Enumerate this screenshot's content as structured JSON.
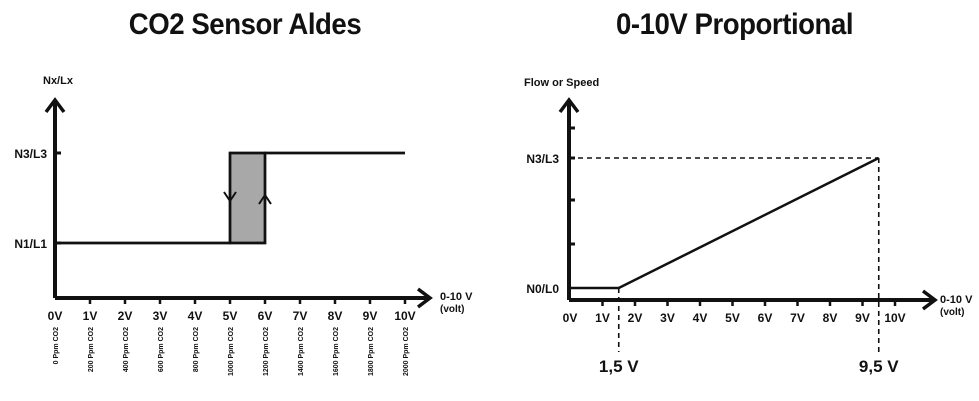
{
  "chart_data": [
    {
      "type": "line",
      "title": "CO2 Sensor Aldes",
      "ylabel": "Nx/Lx",
      "xlabel": "0-10 V (volt)",
      "xlabel_main": "0-10 V",
      "xlabel_unit": "(volt)",
      "x_ticks": [
        "0V",
        "1V",
        "2V",
        "3V",
        "4V",
        "5V",
        "6V",
        "7V",
        "8V",
        "9V",
        "10V"
      ],
      "ppm_ticks": [
        "0 Ppm CO2",
        "200 Ppm CO2",
        "400 Ppm CO2",
        "600 Ppm CO2",
        "800 Ppm CO2",
        "1000 Ppm CO2",
        "1200 Ppm CO2",
        "1400 Ppm CO2",
        "1600 Ppm CO2",
        "1800 Ppm CO2",
        "2000 Ppm CO2"
      ],
      "y_levels": [
        "N1/L1",
        "N3/L3"
      ],
      "xlim": [
        0,
        10
      ],
      "series": [
        {
          "x": [
            0,
            6,
            6,
            10
          ],
          "y": [
            "N1/L1",
            "N1/L1",
            "N3/L3",
            "N3/L3"
          ]
        },
        {
          "x": [
            0,
            5,
            5,
            10
          ],
          "y": [
            "N1/L1",
            "N1/L1",
            "N3/L3",
            "N3/L3"
          ]
        }
      ],
      "hysteresis_band": [
        5,
        6
      ]
    },
    {
      "type": "line",
      "title": "0-10V Proportional",
      "ylabel": "Flow or Speed",
      "xlabel": "0-10 V (volt)",
      "xlabel_main": "0-10 V",
      "xlabel_unit": "(volt)",
      "x_ticks": [
        "0V",
        "1V",
        "2V",
        "3V",
        "4V",
        "5V",
        "6V",
        "7V",
        "8V",
        "9V",
        "10V"
      ],
      "y_levels": [
        "N0/L0",
        "N3/L3"
      ],
      "xlim": [
        0,
        10
      ],
      "series": [
        {
          "x": [
            0,
            1.5,
            9.5
          ],
          "y": [
            "N0/L0",
            "N0/L0",
            "N3/L3"
          ]
        }
      ],
      "annotations": [
        {
          "x": 1.5,
          "label": "1,5 V"
        },
        {
          "x": 9.5,
          "label": "9,5 V"
        }
      ]
    }
  ]
}
